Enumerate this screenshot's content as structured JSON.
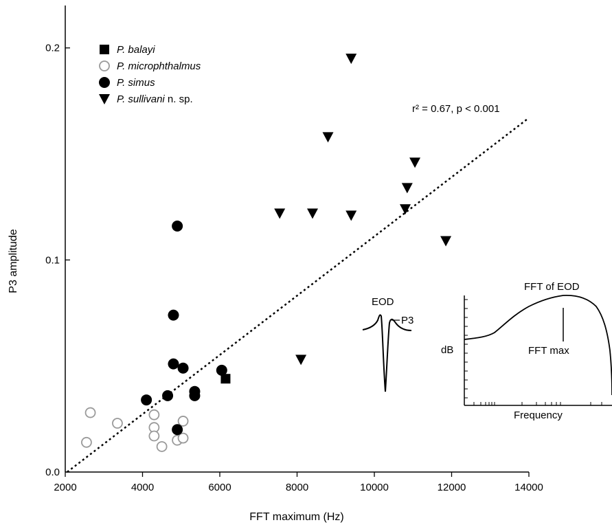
{
  "chart_data": {
    "type": "scatter",
    "xlabel": "FFT maximum (Hz)",
    "ylabel": "P3 amplitude",
    "xlim": [
      2000,
      14000
    ],
    "ylim": [
      0.0,
      0.22
    ],
    "x_ticks": [
      2000,
      4000,
      6000,
      8000,
      10000,
      12000,
      14000
    ],
    "y_ticks": [
      0.0,
      0.1,
      0.2
    ],
    "x_tick_labels": [
      "2000",
      "4000",
      "6000",
      "8000",
      "10000",
      "12000",
      "14000"
    ],
    "y_tick_labels": [
      "0.0",
      "0.1",
      "0.2"
    ],
    "grid": false,
    "legend_position": "top-left",
    "series": [
      {
        "name": "P. balayi",
        "name_italic": "P. balayi",
        "name_suffix": "",
        "marker": "filled-square",
        "color": "#000000",
        "points": [
          [
            6150,
            0.044
          ]
        ]
      },
      {
        "name": "P. microphthalmus",
        "name_italic": "P. microphthalmus",
        "name_suffix": "",
        "marker": "open-circle",
        "color": "#9a9a9a",
        "points": [
          [
            2550,
            0.014
          ],
          [
            2650,
            0.028
          ],
          [
            3350,
            0.023
          ],
          [
            4300,
            0.027
          ],
          [
            4300,
            0.021
          ],
          [
            4300,
            0.017
          ],
          [
            4500,
            0.012
          ],
          [
            4900,
            0.015
          ],
          [
            5050,
            0.024
          ],
          [
            5050,
            0.016
          ]
        ]
      },
      {
        "name": "P. simus",
        "name_italic": "P. simus",
        "name_suffix": "",
        "marker": "filled-circle",
        "color": "#000000",
        "points": [
          [
            4100,
            0.034
          ],
          [
            4650,
            0.036
          ],
          [
            4800,
            0.074
          ],
          [
            4800,
            0.051
          ],
          [
            4900,
            0.116
          ],
          [
            4900,
            0.02
          ],
          [
            5050,
            0.049
          ],
          [
            5350,
            0.038
          ],
          [
            5350,
            0.036
          ],
          [
            6050,
            0.048
          ]
        ]
      },
      {
        "name": "P. sullivani n. sp.",
        "name_italic": "P. sullivani",
        "name_suffix": " n. sp.",
        "marker": "filled-triangle-down",
        "color": "#000000",
        "points": [
          [
            9400,
            0.195
          ],
          [
            8800,
            0.158
          ],
          [
            11050,
            0.146
          ],
          [
            10850,
            0.134
          ],
          [
            7550,
            0.122
          ],
          [
            8400,
            0.122
          ],
          [
            9400,
            0.121
          ],
          [
            10800,
            0.124
          ],
          [
            11850,
            0.109
          ],
          [
            8100,
            0.053
          ]
        ]
      }
    ],
    "regression": {
      "label": "r² = 0.67, p < 0.001",
      "line": [
        [
          2050,
          0.0
        ],
        [
          14000,
          0.167
        ]
      ],
      "style": "dotted"
    },
    "inset_eod": {
      "label": "EOD",
      "p3_label": "P3"
    },
    "inset_fft": {
      "title": "FFT of EOD",
      "ylabel": "dB",
      "xlabel": "Frequency",
      "max_label": "FFT max"
    }
  }
}
